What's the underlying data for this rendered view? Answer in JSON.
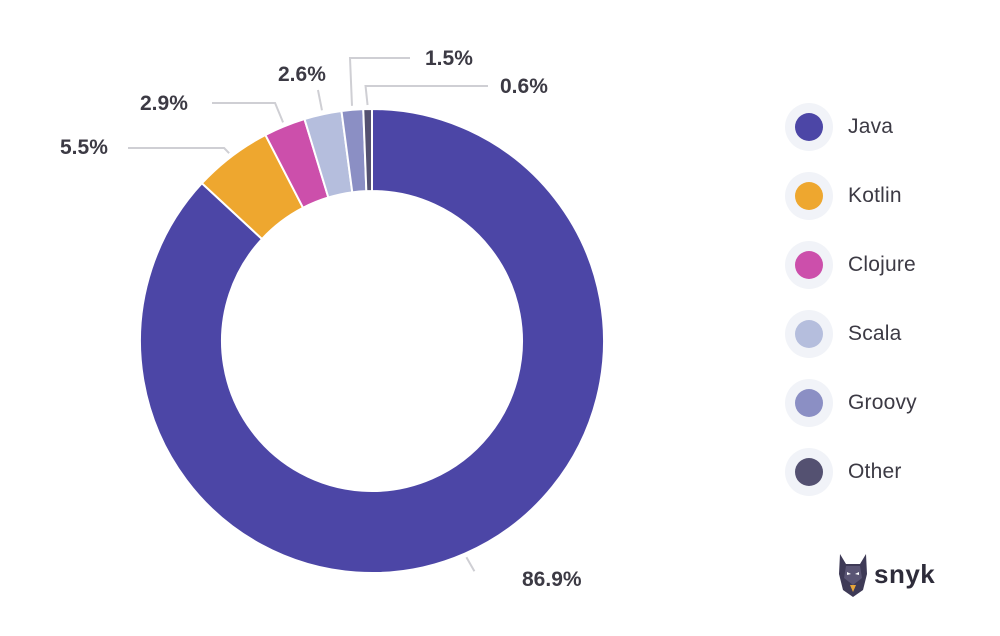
{
  "chart_data": {
    "type": "pie",
    "variant": "donut",
    "title": "",
    "categories": [
      "Java",
      "Kotlin",
      "Clojure",
      "Scala",
      "Groovy",
      "Other"
    ],
    "values": [
      86.9,
      5.5,
      2.9,
      2.6,
      1.5,
      0.6
    ],
    "value_labels": [
      "86.9%",
      "5.5%",
      "2.9%",
      "2.6%",
      "1.5%",
      "0.6%"
    ],
    "colors": [
      "#4c46a6",
      "#eea72f",
      "#cc4fab",
      "#b5bedd",
      "#8b8fc4",
      "#545171"
    ],
    "legend_position": "right"
  },
  "legend": {
    "items": [
      {
        "label": "Java",
        "color": "#4c46a6"
      },
      {
        "label": "Kotlin",
        "color": "#eea72f"
      },
      {
        "label": "Clojure",
        "color": "#cc4fab"
      },
      {
        "label": "Scala",
        "color": "#b5bedd"
      },
      {
        "label": "Groovy",
        "color": "#8b8fc4"
      },
      {
        "label": "Other",
        "color": "#545171"
      }
    ]
  },
  "brand": {
    "name": "snyk",
    "icon": "snyk-dog-logo-icon"
  }
}
